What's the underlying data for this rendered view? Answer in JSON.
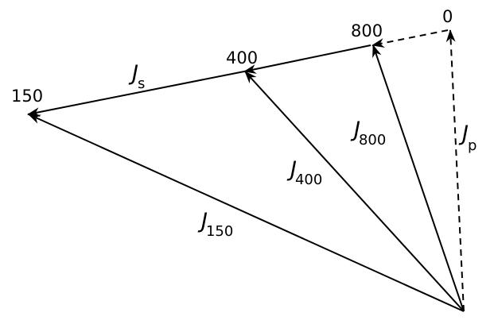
{
  "diagram": {
    "points": {
      "p0": "0",
      "p800": "800",
      "p400": "400",
      "p150": "150"
    },
    "vectors": {
      "js": {
        "main": "J",
        "sub": "s"
      },
      "jp": {
        "main": "J",
        "sub": "p"
      },
      "j800": {
        "main": "J",
        "sub": "800"
      },
      "j400": {
        "main": "J",
        "sub": "400"
      },
      "j150": {
        "main": "J",
        "sub": "150"
      }
    },
    "colors": {
      "line": "#000000",
      "background": "#ffffff"
    }
  }
}
